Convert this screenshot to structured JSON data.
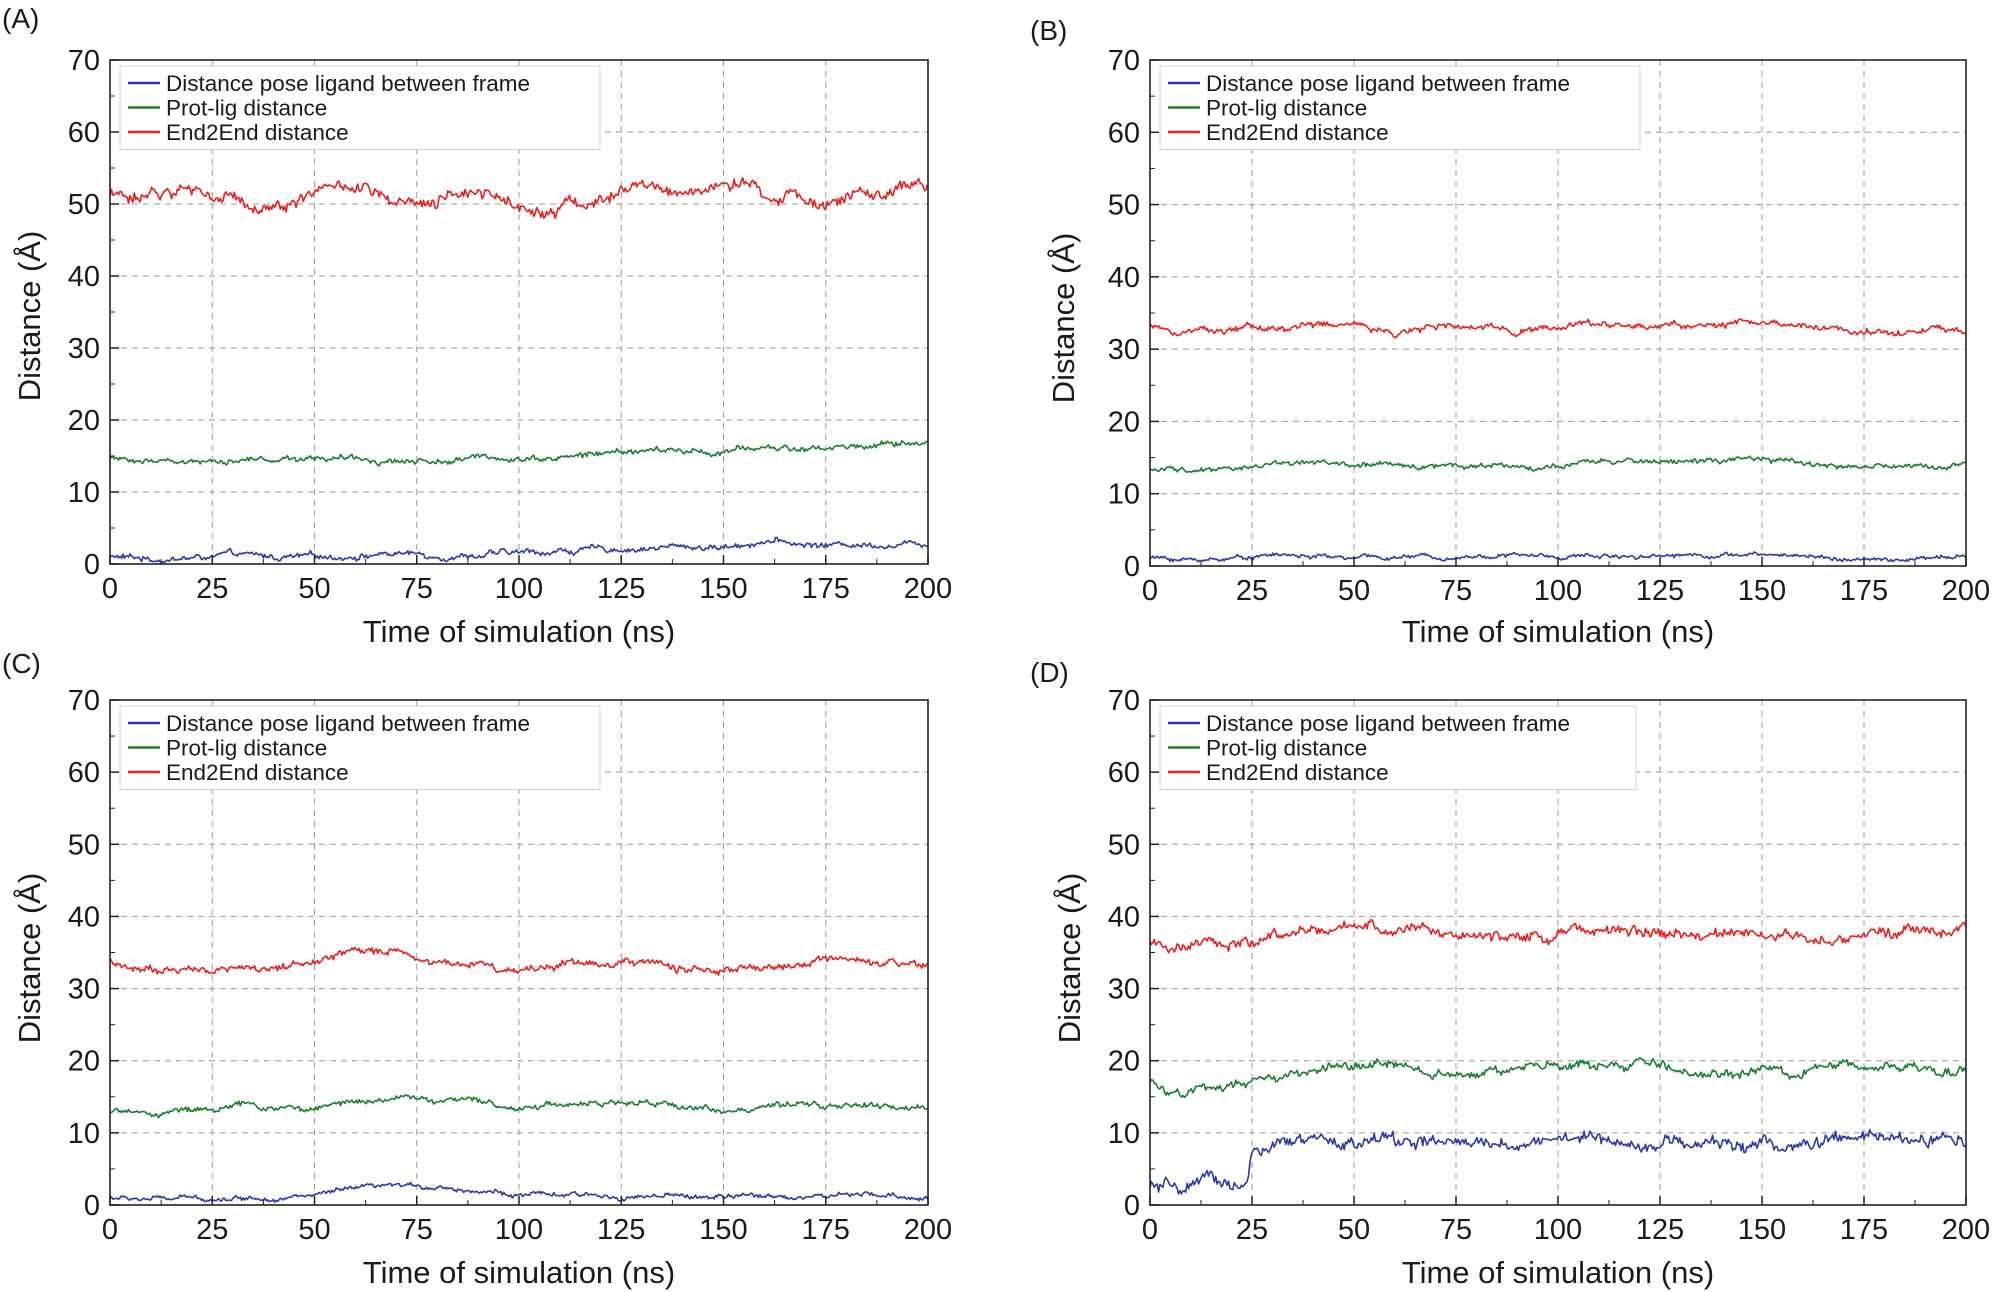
{
  "figure": {
    "colors": {
      "distance_pose": "#2b3aa6",
      "prot_lig": "#1b7d2e",
      "end2end": "#e8201e",
      "frame": "#222222",
      "grid": "#9a9a9a"
    }
  },
  "chart_data": [
    {
      "panel_label": "(A)",
      "type": "line",
      "xlabel": "Time of simulation (ns)",
      "ylabel": "Distance (Å)",
      "xlim": [
        0,
        200
      ],
      "ylim": [
        0,
        70
      ],
      "xticks": [
        0,
        25,
        50,
        75,
        100,
        125,
        150,
        175,
        200
      ],
      "yticks": [
        0,
        10,
        20,
        30,
        40,
        50,
        60,
        70
      ],
      "grid": true,
      "legend_position": "top-left",
      "x": [
        0,
        10,
        20,
        30,
        40,
        50,
        60,
        70,
        80,
        90,
        100,
        110,
        120,
        130,
        140,
        150,
        160,
        170,
        180,
        190,
        200
      ],
      "series": [
        {
          "name": "Distance pose ligand between frame",
          "color_key": "distance_pose",
          "noise": 0.5,
          "values": [
            1.0,
            0.7,
            0.8,
            1.2,
            0.9,
            0.9,
            1.2,
            1.5,
            1.2,
            1.3,
            1.5,
            1.8,
            2.0,
            2.2,
            2.4,
            2.3,
            3.3,
            2.6,
            2.7,
            2.8,
            2.9
          ]
        },
        {
          "name": "Prot-lig distance",
          "color_key": "prot_lig",
          "noise": 0.5,
          "values": [
            15.0,
            14.5,
            14.4,
            14.5,
            14.6,
            14.9,
            14.5,
            14.4,
            14.3,
            14.7,
            14.8,
            14.8,
            15.3,
            15.8,
            15.6,
            15.5,
            16.2,
            16.0,
            16.3,
            16.6,
            16.9
          ]
        },
        {
          "name": "End2End distance",
          "color_key": "end2end",
          "noise": 1.1,
          "values": [
            51.5,
            51.5,
            52.0,
            50.5,
            49.5,
            52.0,
            52.5,
            49.5,
            49.5,
            52.5,
            49.5,
            50.0,
            50.5,
            52.5,
            51.5,
            53.0,
            51.0,
            50.5,
            51.0,
            51.0,
            52.5
          ]
        }
      ]
    },
    {
      "panel_label": "(B)",
      "type": "line",
      "xlabel": "Time of simulation (ns)",
      "ylabel": "Distance (Å)",
      "xlim": [
        0,
        200
      ],
      "ylim": [
        0,
        70
      ],
      "xticks": [
        0,
        25,
        50,
        75,
        100,
        125,
        150,
        175,
        200
      ],
      "yticks": [
        0,
        10,
        20,
        30,
        40,
        50,
        60,
        70
      ],
      "grid": true,
      "legend_position": "top-left",
      "x": [
        0,
        10,
        20,
        30,
        40,
        50,
        60,
        70,
        80,
        90,
        100,
        110,
        120,
        130,
        140,
        150,
        160,
        170,
        180,
        190,
        200
      ],
      "series": [
        {
          "name": "Distance pose ligand between frame",
          "color_key": "distance_pose",
          "noise": 0.35,
          "values": [
            1.2,
            0.8,
            1.1,
            1.6,
            1.3,
            1.1,
            1.2,
            1.3,
            1.4,
            1.5,
            1.3,
            1.4,
            1.5,
            1.6,
            1.6,
            1.5,
            1.5,
            1.0,
            0.7,
            1.0,
            1.2
          ]
        },
        {
          "name": "Prot-lig distance",
          "color_key": "prot_lig",
          "noise": 0.45,
          "values": [
            13.5,
            13.2,
            13.5,
            14.2,
            14.5,
            13.9,
            13.8,
            14.0,
            14.0,
            13.8,
            13.6,
            14.3,
            14.5,
            14.6,
            14.5,
            14.6,
            14.3,
            13.8,
            13.7,
            13.8,
            14.0
          ]
        },
        {
          "name": "End2End distance",
          "color_key": "end2end",
          "noise": 0.55,
          "values": [
            33.5,
            32.8,
            32.8,
            33.0,
            33.2,
            33.5,
            32.5,
            33.0,
            32.8,
            32.8,
            33.2,
            33.5,
            33.2,
            33.3,
            33.5,
            33.5,
            33.2,
            32.8,
            32.5,
            32.7,
            32.5
          ]
        }
      ]
    },
    {
      "panel_label": "(C)",
      "type": "line",
      "xlabel": "Time of simulation (ns)",
      "ylabel": "Distance (Å)",
      "xlim": [
        0,
        200
      ],
      "ylim": [
        0,
        70
      ],
      "xticks": [
        0,
        25,
        50,
        75,
        100,
        125,
        150,
        175,
        200
      ],
      "yticks": [
        0,
        10,
        20,
        30,
        40,
        50,
        60,
        70
      ],
      "grid": true,
      "legend_position": "top-left",
      "x": [
        0,
        10,
        20,
        30,
        40,
        50,
        60,
        70,
        80,
        90,
        100,
        110,
        120,
        130,
        140,
        150,
        160,
        170,
        180,
        190,
        200
      ],
      "series": [
        {
          "name": "Distance pose ligand between frame",
          "color_key": "distance_pose",
          "noise": 0.4,
          "values": [
            1.0,
            0.8,
            0.9,
            1.0,
            1.1,
            1.3,
            2.2,
            2.5,
            2.6,
            2.0,
            1.4,
            1.3,
            1.2,
            1.2,
            1.1,
            1.1,
            1.2,
            1.2,
            1.3,
            1.2,
            1.0
          ]
        },
        {
          "name": "Prot-lig distance",
          "color_key": "prot_lig",
          "noise": 0.5,
          "values": [
            13.0,
            12.8,
            13.2,
            13.8,
            13.5,
            13.2,
            14.5,
            15.0,
            14.5,
            14.2,
            13.5,
            14.2,
            14.0,
            14.0,
            13.8,
            13.2,
            13.5,
            13.6,
            13.9,
            13.5,
            13.2
          ]
        },
        {
          "name": "End2End distance",
          "color_key": "end2end",
          "noise": 0.65,
          "values": [
            34.0,
            32.5,
            32.5,
            32.8,
            33.0,
            33.5,
            35.0,
            35.5,
            33.5,
            33.5,
            32.5,
            33.5,
            33.8,
            33.5,
            33.0,
            32.5,
            32.5,
            33.5,
            33.5,
            33.0,
            33.0
          ]
        }
      ]
    },
    {
      "panel_label": "(D)",
      "type": "line",
      "xlabel": "Time of simulation (ns)",
      "ylabel": "Distance (Å)",
      "xlim": [
        0,
        200
      ],
      "ylim": [
        0,
        70
      ],
      "xticks": [
        0,
        25,
        50,
        75,
        100,
        125,
        150,
        175,
        200
      ],
      "yticks": [
        0,
        10,
        20,
        30,
        40,
        50,
        60,
        70
      ],
      "grid": true,
      "legend_position": "top-left",
      "x": [
        0,
        5,
        10,
        15,
        20,
        24,
        25,
        30,
        40,
        50,
        60,
        70,
        80,
        90,
        100,
        110,
        120,
        130,
        140,
        150,
        160,
        170,
        180,
        190,
        200
      ],
      "series": [
        {
          "name": "Distance pose ligand between frame",
          "color_key": "distance_pose",
          "noise": 1.1,
          "values": [
            2.5,
            2.0,
            2.5,
            3.0,
            3.0,
            3.0,
            7.5,
            8.0,
            8.5,
            8.5,
            9.0,
            8.5,
            8.0,
            8.5,
            9.5,
            9.0,
            9.0,
            8.5,
            8.5,
            8.5,
            8.0,
            9.0,
            9.0,
            9.0,
            9.0
          ]
        },
        {
          "name": "Prot-lig distance",
          "color_key": "prot_lig",
          "noise": 0.75,
          "values": [
            17.0,
            16.0,
            16.0,
            16.0,
            16.5,
            16.5,
            16.5,
            17.5,
            18.5,
            19.0,
            19.5,
            18.5,
            18.5,
            18.5,
            19.5,
            19.0,
            19.5,
            18.5,
            18.5,
            18.5,
            18.0,
            19.5,
            19.0,
            19.0,
            19.0
          ]
        },
        {
          "name": "End2End distance",
          "color_key": "end2end",
          "noise": 0.9,
          "values": [
            37.0,
            36.0,
            36.0,
            36.5,
            36.0,
            35.5,
            35.5,
            37.0,
            37.5,
            38.5,
            38.5,
            37.5,
            37.0,
            37.5,
            38.0,
            38.0,
            38.0,
            37.5,
            37.5,
            37.5,
            37.0,
            37.5,
            37.5,
            38.0,
            38.0
          ]
        }
      ]
    }
  ]
}
